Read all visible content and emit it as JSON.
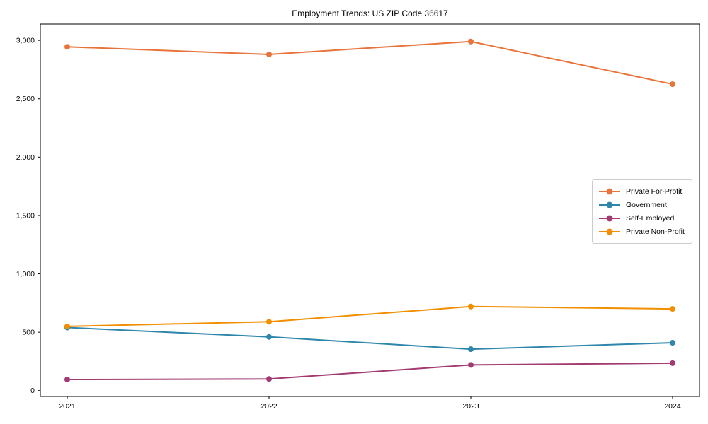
{
  "chart_data": {
    "type": "line",
    "title": "Employment Trends: US ZIP Code 36617",
    "categories": [
      "2021",
      "2022",
      "2023",
      "2024"
    ],
    "series": [
      {
        "name": "Private For-Profit",
        "color": "#e8743b",
        "values": [
          2945,
          2880,
          2990,
          2625
        ]
      },
      {
        "name": "Government",
        "color": "#2e86ab",
        "values": [
          540,
          460,
          355,
          410
        ]
      },
      {
        "name": "Self-Employed",
        "color": "#a23b72",
        "values": [
          95,
          100,
          220,
          235
        ]
      },
      {
        "name": "Private Non-Profit",
        "color": "#f18f01",
        "values": [
          550,
          590,
          720,
          700
        ]
      }
    ],
    "xlabel": "",
    "ylabel": "",
    "ylim": [
      -50,
      3140
    ],
    "yticks": [
      0,
      500,
      1000,
      1500,
      2000,
      2500,
      3000
    ],
    "ytick_labels": [
      "0",
      "500",
      "1,000",
      "1,500",
      "2,000",
      "2,500",
      "3,000"
    ],
    "grid": false,
    "legend_position": "center-right",
    "frame_color": "#000000",
    "text_color": "#000000"
  }
}
